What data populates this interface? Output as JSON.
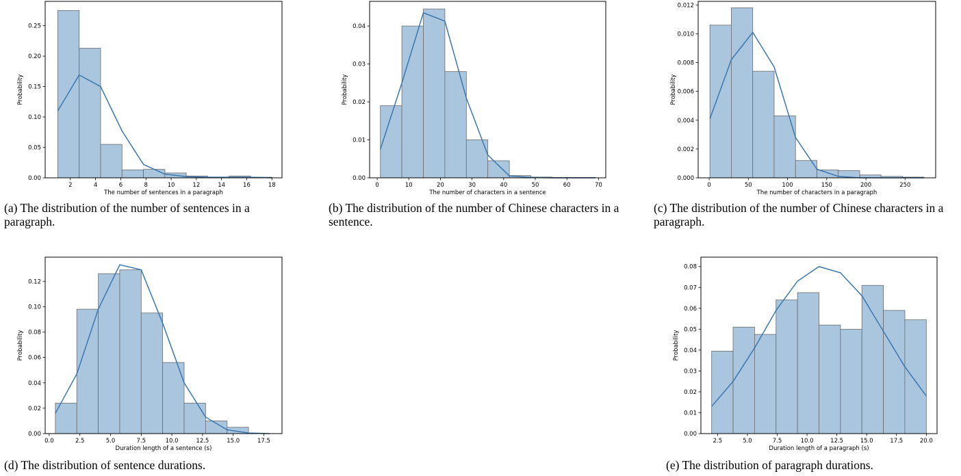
{
  "chart_data": [
    {
      "id": "a",
      "type": "bar",
      "caption": "(a) The distribution of the number of sentences in a paragraph.",
      "xlabel": "The number of sentences in a paragraph",
      "ylabel": "Probability",
      "xlim": [
        0,
        18.8
      ],
      "ylim": [
        0,
        0.29
      ],
      "xticks": [
        2,
        4,
        6,
        8,
        10,
        12,
        14,
        16,
        18
      ],
      "yticks": [
        0.0,
        0.05,
        0.1,
        0.15,
        0.2,
        0.25
      ],
      "ytick_decimals": 2,
      "bin_edges": [
        1,
        2.7,
        4.4,
        6.1,
        7.8,
        9.5,
        11.2,
        12.9,
        14.6,
        16.3,
        18
      ],
      "values": [
        0.275,
        0.213,
        0.055,
        0.013,
        0.014,
        0.008,
        0.003,
        0.001,
        0.003,
        0.001
      ],
      "kde_x": [
        1,
        2.7,
        4.4,
        6.1,
        7.8,
        9.5,
        11.2,
        12.9,
        14.6,
        16.3,
        18
      ],
      "kde_y": [
        0.11,
        0.169,
        0.15,
        0.077,
        0.022,
        0.006,
        0.002,
        0.001,
        0.001,
        0.001,
        0.0
      ]
    },
    {
      "id": "b",
      "type": "bar",
      "caption": "(b) The distribution of the number of Chinese characters in a sentence.",
      "xlabel": "The number of characters in a sentence",
      "ylabel": "Probability",
      "xlim": [
        -2.4,
        72.3
      ],
      "ylim": [
        0,
        0.0465
      ],
      "xticks": [
        0,
        10,
        20,
        30,
        40,
        50,
        60,
        70
      ],
      "yticks": [
        0.0,
        0.01,
        0.02,
        0.03,
        0.04
      ],
      "ytick_decimals": 2,
      "bin_edges": [
        1,
        7.8,
        14.6,
        21.4,
        28.2,
        35,
        41.8,
        48.6,
        55.4,
        62.2,
        69
      ],
      "values": [
        0.019,
        0.04,
        0.0445,
        0.028,
        0.01,
        0.0045,
        0.0006,
        0.0002,
        0.0001,
        0.0001
      ],
      "kde_x": [
        1,
        7.8,
        14.6,
        21.4,
        28.2,
        35,
        41.8,
        48.6,
        55.4,
        62.2,
        69
      ],
      "kde_y": [
        0.0075,
        0.025,
        0.0435,
        0.0413,
        0.021,
        0.006,
        0.0005,
        0.0001,
        0.0,
        0.0,
        0.0
      ]
    },
    {
      "id": "c",
      "type": "bar",
      "caption": "(c) The distribution of the number of Chinese characters in a paragraph.",
      "xlabel": "The number of characters in a paragraph",
      "ylabel": "Probability",
      "xlim": [
        -14,
        289
      ],
      "ylim": [
        0,
        0.01225
      ],
      "xticks": [
        0,
        50,
        100,
        150,
        200,
        250
      ],
      "yticks": [
        0.0,
        0.002,
        0.004,
        0.006,
        0.008,
        0.01,
        0.012
      ],
      "ytick_decimals": 3,
      "bin_edges": [
        1,
        28.3,
        55.6,
        82.9,
        110.2,
        137.5,
        164.8,
        192.1,
        219.4,
        246.7,
        274
      ],
      "values": [
        0.0106,
        0.0118,
        0.0074,
        0.0043,
        0.0012,
        0.00055,
        0.0005,
        0.0002,
        0.0001,
        5e-05
      ],
      "kde_x": [
        1,
        28.3,
        55.6,
        82.9,
        110.2,
        137.5,
        164.8,
        192.1,
        219.4,
        246.7,
        274
      ],
      "kde_y": [
        0.0041,
        0.0082,
        0.0101,
        0.0077,
        0.0028,
        0.0006,
        0.0001,
        0.0,
        0.0,
        0.0,
        0.0
      ]
    },
    {
      "id": "d",
      "type": "bar",
      "caption": "(d) The distribution of sentence durations.",
      "xlabel": "Duration length of a sentence (s)",
      "ylabel": "Probability",
      "xlim": [
        -0.33,
        18.98
      ],
      "ylim": [
        0,
        0.139
      ],
      "xticks": [
        0.0,
        2.5,
        5.0,
        7.5,
        10.0,
        12.5,
        15.0,
        17.5
      ],
      "xtick_decimals": 1,
      "yticks": [
        0.0,
        0.02,
        0.04,
        0.06,
        0.08,
        0.1,
        0.12
      ],
      "ytick_decimals": 2,
      "bin_edges": [
        0.5,
        2.25,
        4.0,
        5.75,
        7.5,
        9.25,
        11.0,
        12.75,
        14.5,
        16.25,
        18.0
      ],
      "values": [
        0.024,
        0.098,
        0.126,
        0.129,
        0.095,
        0.056,
        0.024,
        0.01,
        0.005,
        0.0
      ],
      "kde_x": [
        0.5,
        2.25,
        4.0,
        5.75,
        7.5,
        9.25,
        11.0,
        12.75,
        14.5,
        16.25,
        18.0
      ],
      "kde_y": [
        0.016,
        0.047,
        0.098,
        0.133,
        0.129,
        0.087,
        0.04,
        0.013,
        0.003,
        0.0005,
        0.0
      ]
    },
    {
      "id": "e",
      "type": "bar",
      "caption": "(e) The distribution of paragraph durations.",
      "xlabel": "Duration length of a paragraph (s)",
      "ylabel": "Probability",
      "xlim": [
        1.1,
        20.9
      ],
      "ylim": [
        0,
        0.0845
      ],
      "xticks": [
        2.5,
        5.0,
        7.5,
        10.0,
        12.5,
        15.0,
        17.5,
        20.0
      ],
      "xtick_decimals": 1,
      "yticks": [
        0.0,
        0.01,
        0.02,
        0.03,
        0.04,
        0.05,
        0.06,
        0.07,
        0.08
      ],
      "ytick_decimals": 2,
      "bin_edges": [
        2.0,
        3.8,
        5.6,
        7.4,
        9.2,
        11.0,
        12.8,
        14.6,
        16.4,
        18.2,
        20.0
      ],
      "values": [
        0.0395,
        0.051,
        0.0475,
        0.064,
        0.0675,
        0.052,
        0.05,
        0.071,
        0.059,
        0.0545
      ],
      "kde_x": [
        2.0,
        3.8,
        5.6,
        7.4,
        9.2,
        11.0,
        12.8,
        14.6,
        16.4,
        18.2,
        20.0
      ],
      "kde_y": [
        0.013,
        0.025,
        0.041,
        0.059,
        0.073,
        0.08,
        0.077,
        0.066,
        0.049,
        0.032,
        0.018
      ]
    }
  ],
  "colors": {
    "bar_fill": "#a9c6de",
    "bar_edge": "#6b6b6b",
    "kde_line": "#3b76af",
    "axis": "#000000"
  }
}
